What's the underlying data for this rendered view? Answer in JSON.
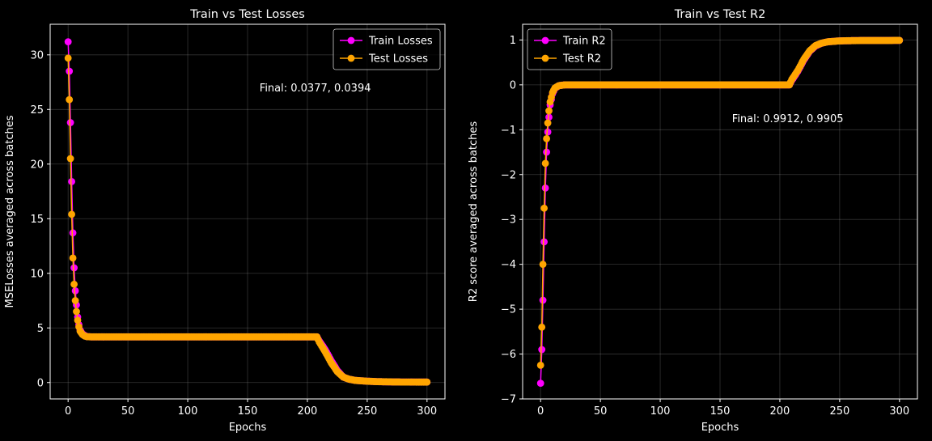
{
  "figure": {
    "background": "#000000"
  },
  "chart_data": [
    {
      "type": "line",
      "title": "Train vs Test Losses",
      "xlabel": "Epochs",
      "ylabel": "MSELosses averaged across batches",
      "xlim": [
        -15,
        315
      ],
      "ylim": [
        -1.5,
        32.8
      ],
      "xticks": [
        0,
        50,
        100,
        150,
        200,
        250,
        300
      ],
      "yticks": [
        0,
        5,
        10,
        15,
        20,
        25,
        30
      ],
      "grid": true,
      "legend": "top-right",
      "annotation": {
        "text": "Final: 0.0377, 0.0394",
        "x": 160,
        "y": 27
      },
      "series": [
        {
          "name": "Train Losses",
          "color": "#ff00ff",
          "x": [
            0,
            1,
            2,
            3,
            4,
            5,
            6,
            7,
            8,
            9,
            10,
            12,
            14,
            16,
            20,
            30,
            50,
            100,
            150,
            200,
            208,
            210,
            215,
            220,
            225,
            230,
            235,
            240,
            250,
            260,
            270,
            280,
            290,
            300
          ],
          "y": [
            31.2,
            28.5,
            23.8,
            18.4,
            13.7,
            10.5,
            8.4,
            7.1,
            6.0,
            5.3,
            4.8,
            4.45,
            4.3,
            4.2,
            4.18,
            4.18,
            4.18,
            4.18,
            4.18,
            4.18,
            4.18,
            3.8,
            3.0,
            2.0,
            1.1,
            0.5,
            0.3,
            0.2,
            0.12,
            0.08,
            0.06,
            0.05,
            0.04,
            0.0377
          ]
        },
        {
          "name": "Test Losses",
          "color": "#ffa500",
          "x": [
            0,
            1,
            2,
            3,
            4,
            5,
            6,
            7,
            8,
            9,
            10,
            12,
            14,
            16,
            20,
            30,
            50,
            100,
            150,
            200,
            208,
            210,
            215,
            220,
            225,
            230,
            235,
            240,
            250,
            260,
            270,
            280,
            290,
            300
          ],
          "y": [
            29.7,
            25.9,
            20.5,
            15.4,
            11.4,
            9.0,
            7.5,
            6.5,
            5.7,
            5.1,
            4.7,
            4.4,
            4.25,
            4.2,
            4.18,
            4.18,
            4.18,
            4.18,
            4.18,
            4.18,
            4.18,
            3.7,
            2.8,
            1.8,
            1.0,
            0.5,
            0.3,
            0.2,
            0.12,
            0.08,
            0.06,
            0.05,
            0.045,
            0.0394
          ]
        }
      ]
    },
    {
      "type": "line",
      "title": "Train vs Test R2",
      "xlabel": "Epochs",
      "ylabel": "R2 score averaged across batches",
      "xlim": [
        -15,
        315
      ],
      "ylim": [
        -7.0,
        1.35
      ],
      "xticks": [
        0,
        50,
        100,
        150,
        200,
        250,
        300
      ],
      "yticks": [
        -7,
        -6,
        -5,
        -4,
        -3,
        -2,
        -1,
        0,
        1
      ],
      "ytick_labels": [
        "−7",
        "−6",
        "−5",
        "−4",
        "−3",
        "−2",
        "−1",
        "0",
        "1"
      ],
      "grid": true,
      "legend": "top-left",
      "annotation": {
        "text": "Final: 0.9912, 0.9905",
        "x": 160,
        "y": -0.75
      },
      "series": [
        {
          "name": "Train R2",
          "color": "#ff00ff",
          "x": [
            0,
            1,
            2,
            3,
            4,
            5,
            6,
            7,
            8,
            10,
            12,
            15,
            20,
            30,
            50,
            100,
            150,
            200,
            208,
            210,
            215,
            220,
            225,
            230,
            235,
            240,
            250,
            260,
            270,
            280,
            290,
            300
          ],
          "y": [
            -6.65,
            -5.9,
            -4.8,
            -3.5,
            -2.3,
            -1.5,
            -1.05,
            -0.72,
            -0.45,
            -0.2,
            -0.08,
            -0.02,
            0.0,
            0.0,
            0.0,
            0.0,
            0.0,
            0.0,
            0.0,
            0.1,
            0.3,
            0.55,
            0.75,
            0.87,
            0.93,
            0.96,
            0.98,
            0.985,
            0.99,
            0.99,
            0.99,
            0.9912
          ]
        },
        {
          "name": "Test R2",
          "color": "#ffa500",
          "x": [
            0,
            1,
            2,
            3,
            4,
            5,
            6,
            7,
            8,
            10,
            12,
            15,
            20,
            30,
            50,
            100,
            150,
            200,
            208,
            210,
            215,
            220,
            225,
            230,
            235,
            240,
            250,
            260,
            270,
            280,
            290,
            300
          ],
          "y": [
            -6.25,
            -5.4,
            -4.0,
            -2.75,
            -1.75,
            -1.2,
            -0.85,
            -0.58,
            -0.38,
            -0.17,
            -0.07,
            -0.02,
            0.0,
            0.0,
            0.0,
            0.0,
            0.0,
            0.0,
            0.0,
            0.12,
            0.32,
            0.57,
            0.76,
            0.88,
            0.93,
            0.96,
            0.98,
            0.985,
            0.99,
            0.99,
            0.99,
            0.9905
          ]
        }
      ]
    }
  ]
}
